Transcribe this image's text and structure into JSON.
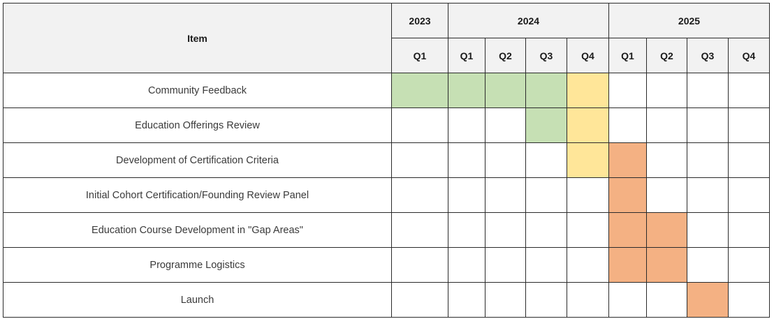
{
  "header": {
    "item_label": "Item"
  },
  "chart_data": {
    "type": "table",
    "years": [
      {
        "label": "2023",
        "span": 1
      },
      {
        "label": "2024",
        "span": 4
      },
      {
        "label": "2025",
        "span": 4
      }
    ],
    "quarters": [
      "Q1",
      "Q1",
      "Q2",
      "Q3",
      "Q4",
      "Q1",
      "Q2",
      "Q3",
      "Q4"
    ],
    "status_colors": {
      "g": "#c6e0b4",
      "y": "#ffe699",
      "o": "#f4b183"
    },
    "rows": [
      {
        "item": "Community Feedback",
        "cells": [
          "g",
          "g",
          "g",
          "g",
          "y",
          "",
          "",
          "",
          ""
        ]
      },
      {
        "item": "Education Offerings Review",
        "cells": [
          "",
          "",
          "",
          "g",
          "y",
          "",
          "",
          "",
          ""
        ]
      },
      {
        "item": "Development of Certification Criteria",
        "cells": [
          "",
          "",
          "",
          "",
          "y",
          "o",
          "",
          "",
          ""
        ]
      },
      {
        "item": "Initial Cohort Certification/Founding Review Panel",
        "cells": [
          "",
          "",
          "",
          "",
          "",
          "o",
          "",
          "",
          ""
        ]
      },
      {
        "item": "Education Course Development in \"Gap Areas\"",
        "cells": [
          "",
          "",
          "",
          "",
          "",
          "o",
          "o",
          "",
          ""
        ]
      },
      {
        "item": "Programme Logistics",
        "cells": [
          "",
          "",
          "",
          "",
          "",
          "o",
          "o",
          "",
          ""
        ]
      },
      {
        "item": "Launch",
        "cells": [
          "",
          "",
          "",
          "",
          "",
          "",
          "",
          "o",
          ""
        ]
      }
    ]
  }
}
